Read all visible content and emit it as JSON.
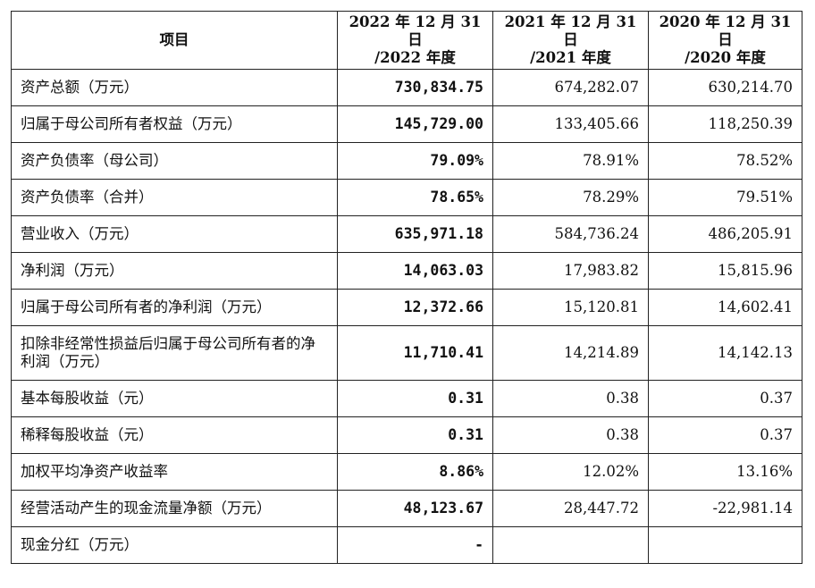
{
  "header": {
    "item": "项目",
    "y2022": [
      "2022 年 12 月 31 日",
      "/2022 年度"
    ],
    "y2021": [
      "2021 年 12 月 31 日",
      "/2021 年度"
    ],
    "y2020": [
      "2020 年 12 月 31 日",
      "/2020 年度"
    ]
  },
  "rows": [
    {
      "label": "资产总额（万元）",
      "v2022": "730,834.75",
      "v2021": "674,282.07",
      "v2020": "630,214.70"
    },
    {
      "label": "归属于母公司所有者权益（万元）",
      "v2022": "145,729.00",
      "v2021": "133,405.66",
      "v2020": "118,250.39"
    },
    {
      "label": "资产负债率（母公司）",
      "v2022": "79.09%",
      "v2021": "78.91%",
      "v2020": "78.52%"
    },
    {
      "label": "资产负债率（合并）",
      "v2022": "78.65%",
      "v2021": "78.29%",
      "v2020": "79.51%"
    },
    {
      "label": "营业收入（万元）",
      "v2022": "635,971.18",
      "v2021": "584,736.24",
      "v2020": "486,205.91"
    },
    {
      "label": "净利润（万元）",
      "v2022": "14,063.03",
      "v2021": "17,983.82",
      "v2020": "15,815.96"
    },
    {
      "label": "归属于母公司所有者的净利润（万元）",
      "v2022": "12,372.66",
      "v2021": "15,120.81",
      "v2020": "14,602.41"
    },
    {
      "label": "扣除非经常性损益后归属于母公司所有者的净利润（万元）",
      "v2022": "11,710.41",
      "v2021": "14,214.89",
      "v2020": "14,142.13"
    },
    {
      "label": "基本每股收益（元）",
      "v2022": "0.31",
      "v2021": "0.38",
      "v2020": "0.37"
    },
    {
      "label": "稀释每股收益（元）",
      "v2022": "0.31",
      "v2021": "0.38",
      "v2020": "0.37"
    },
    {
      "label": "加权平均净资产收益率",
      "v2022": "8.86%",
      "v2021": "12.02%",
      "v2020": "13.16%"
    },
    {
      "label": "经营活动产生的现金流量净额（万元）",
      "v2022": "48,123.67",
      "v2021": "28,447.72",
      "v2020": "-22,981.14"
    },
    {
      "label": "现金分红（万元）",
      "v2022": "-",
      "v2021": "",
      "v2020": ""
    }
  ]
}
